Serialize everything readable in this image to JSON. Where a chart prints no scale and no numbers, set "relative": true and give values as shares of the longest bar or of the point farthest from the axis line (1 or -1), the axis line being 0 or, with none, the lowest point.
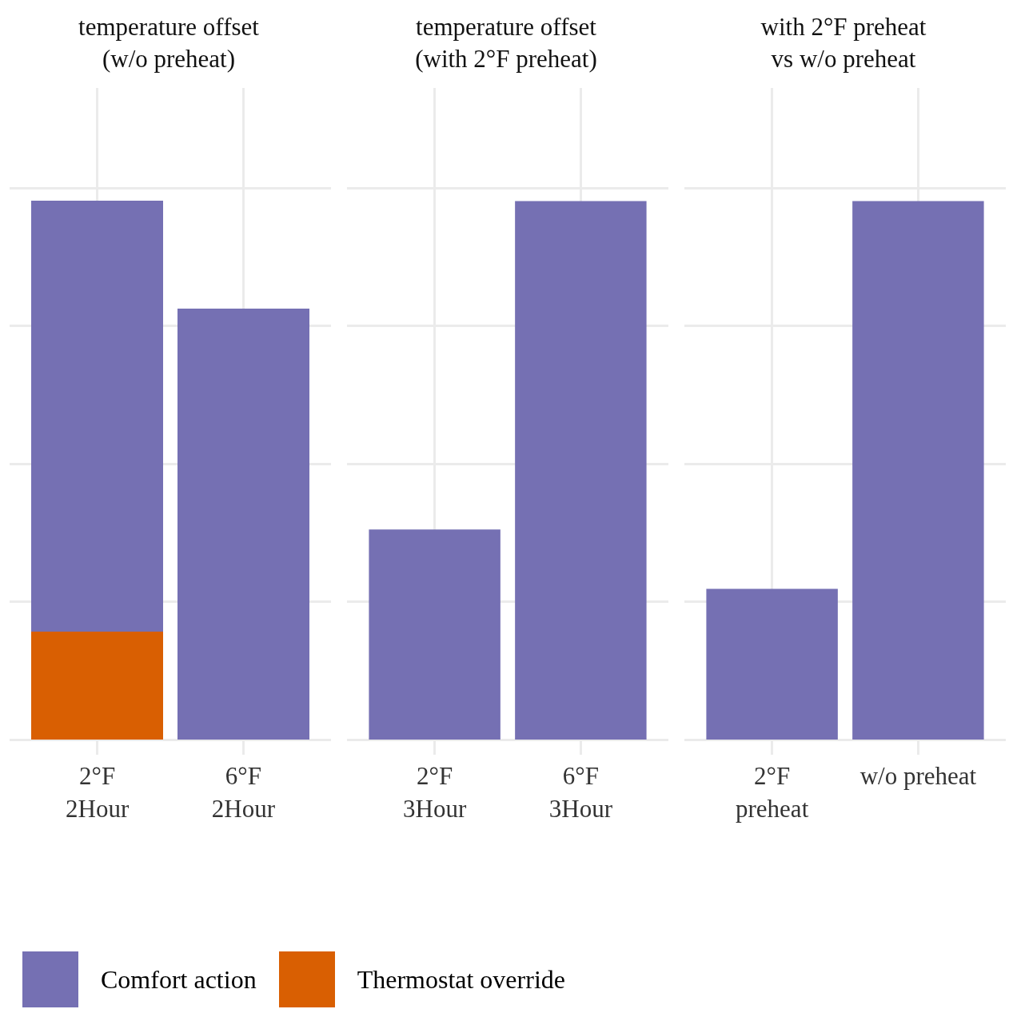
{
  "chart_data": [
    {
      "type": "bar",
      "title": "temperature offset\n(w/o preheat)",
      "categories": [
        "2°F\n2Hour",
        "6°F\n2Hour"
      ],
      "relative": true,
      "stacked": true,
      "grid": true,
      "legend": "bottom",
      "series": [
        {
          "name": "Thermostat override",
          "color": "#d95f02",
          "values": [
            0.2,
            null
          ]
        },
        {
          "name": "Comfort action",
          "color": "#7570b3",
          "values": [
            0.8,
            0.8
          ]
        }
      ]
    },
    {
      "type": "bar",
      "title": "temperature offset\n(with 2°F preheat)",
      "categories": [
        "2°F\n3Hour",
        "6°F\n3Hour"
      ],
      "relative": true,
      "grid": true,
      "series": [
        {
          "color": "#7570b3",
          "values": [
            0.39,
            1
          ]
        }
      ]
    },
    {
      "type": "bar",
      "title": "with 2°F preheat\nvs w/o preheat",
      "categories": [
        "2°F\npreheat",
        "w/o preheat"
      ],
      "relative": true,
      "grid": true,
      "series": [
        {
          "color": "#7570b3",
          "values": [
            0.28,
            1
          ]
        }
      ]
    }
  ]
}
